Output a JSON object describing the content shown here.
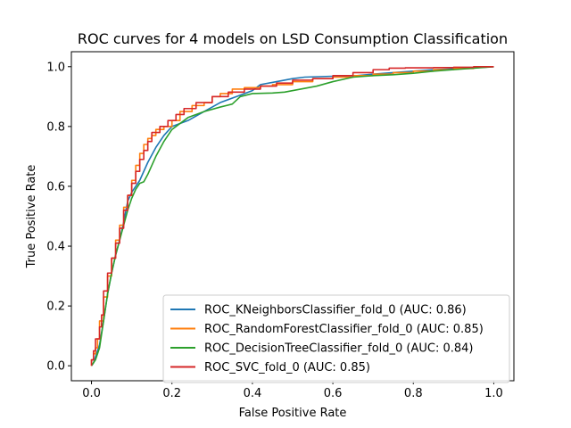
{
  "chart_data": {
    "type": "line",
    "title": "ROC curves for 4 models on LSD Consumption Classification",
    "xlabel": "False Positive Rate",
    "ylabel": "True Positive Rate",
    "xlim": [
      -0.05,
      1.05
    ],
    "ylim": [
      -0.05,
      1.05
    ],
    "xticks": [
      "0.0",
      "0.2",
      "0.4",
      "0.6",
      "0.8",
      "1.0"
    ],
    "yticks": [
      "0.0",
      "0.2",
      "0.4",
      "0.6",
      "0.8",
      "1.0"
    ],
    "grid": false,
    "legend_position": "bottom-right",
    "series": [
      {
        "name": "ROC_KNeighborsClassifier_fold_0 (AUC: 0.86)",
        "color": "#1f77b4",
        "step": false,
        "x": [
          0,
          0.005,
          0.01,
          0.02,
          0.03,
          0.04,
          0.05,
          0.06,
          0.07,
          0.08,
          0.09,
          0.1,
          0.12,
          0.14,
          0.16,
          0.18,
          0.2,
          0.24,
          0.28,
          0.32,
          0.36,
          0.4,
          0.42,
          0.46,
          0.5,
          0.53,
          0.6,
          0.66,
          0.7,
          0.75,
          0.8,
          0.85,
          0.9,
          0.95,
          1.0
        ],
        "y": [
          0,
          0.01,
          0.03,
          0.07,
          0.15,
          0.24,
          0.31,
          0.37,
          0.42,
          0.48,
          0.55,
          0.58,
          0.62,
          0.68,
          0.73,
          0.77,
          0.8,
          0.82,
          0.85,
          0.88,
          0.9,
          0.92,
          0.94,
          0.95,
          0.96,
          0.965,
          0.968,
          0.97,
          0.975,
          0.98,
          0.985,
          0.99,
          0.993,
          0.996,
          1.0
        ]
      },
      {
        "name": "ROC_RandomForestClassifier_fold_0 (AUC: 0.85)",
        "color": "#ff7f0e",
        "step": true,
        "x": [
          0,
          0.005,
          0.01,
          0.015,
          0.02,
          0.03,
          0.04,
          0.05,
          0.06,
          0.07,
          0.08,
          0.09,
          0.1,
          0.11,
          0.12,
          0.13,
          0.14,
          0.15,
          0.16,
          0.18,
          0.2,
          0.22,
          0.25,
          0.28,
          0.3,
          0.32,
          0.35,
          0.38,
          0.42,
          0.45,
          0.5,
          0.55,
          0.6,
          0.65,
          0.7,
          0.75,
          0.8,
          0.85,
          0.9,
          0.95,
          1.0
        ],
        "y": [
          0,
          0.02,
          0.04,
          0.06,
          0.09,
          0.15,
          0.23,
          0.3,
          0.36,
          0.42,
          0.47,
          0.53,
          0.57,
          0.62,
          0.67,
          0.71,
          0.74,
          0.76,
          0.77,
          0.79,
          0.8,
          0.82,
          0.85,
          0.87,
          0.88,
          0.9,
          0.91,
          0.925,
          0.93,
          0.935,
          0.94,
          0.95,
          0.96,
          0.965,
          0.97,
          0.975,
          0.98,
          0.985,
          0.99,
          0.994,
          1.0
        ]
      },
      {
        "name": "ROC_DecisionTreeClassifier_fold_0 (AUC: 0.84)",
        "color": "#2ca02c",
        "step": false,
        "x": [
          0,
          0.01,
          0.02,
          0.03,
          0.04,
          0.05,
          0.06,
          0.07,
          0.08,
          0.09,
          0.1,
          0.11,
          0.12,
          0.13,
          0.14,
          0.16,
          0.18,
          0.2,
          0.24,
          0.28,
          0.32,
          0.35,
          0.37,
          0.4,
          0.45,
          0.48,
          0.52,
          0.56,
          0.6,
          0.65,
          0.7,
          0.75,
          0.8,
          0.85,
          0.9,
          0.95,
          1.0
        ],
        "y": [
          0,
          0.02,
          0.06,
          0.15,
          0.24,
          0.31,
          0.37,
          0.42,
          0.47,
          0.52,
          0.56,
          0.59,
          0.61,
          0.615,
          0.64,
          0.7,
          0.75,
          0.79,
          0.83,
          0.85,
          0.865,
          0.875,
          0.9,
          0.91,
          0.912,
          0.915,
          0.925,
          0.935,
          0.95,
          0.965,
          0.97,
          0.973,
          0.978,
          0.985,
          0.99,
          0.995,
          1.0
        ]
      },
      {
        "name": "ROC_SVC_fold_0 (AUC: 0.85)",
        "color": "#d62728",
        "step": true,
        "x": [
          0,
          0.005,
          0.01,
          0.02,
          0.025,
          0.03,
          0.04,
          0.05,
          0.06,
          0.07,
          0.08,
          0.09,
          0.1,
          0.11,
          0.12,
          0.13,
          0.14,
          0.15,
          0.17,
          0.19,
          0.21,
          0.23,
          0.26,
          0.3,
          0.34,
          0.38,
          0.42,
          0.46,
          0.5,
          0.55,
          0.6,
          0.65,
          0.7,
          0.74,
          0.78,
          0.85,
          0.9,
          0.95,
          1.0
        ],
        "y": [
          0,
          0.02,
          0.05,
          0.09,
          0.13,
          0.17,
          0.25,
          0.31,
          0.36,
          0.41,
          0.46,
          0.52,
          0.57,
          0.61,
          0.65,
          0.69,
          0.72,
          0.75,
          0.78,
          0.8,
          0.82,
          0.84,
          0.86,
          0.88,
          0.9,
          0.915,
          0.925,
          0.935,
          0.945,
          0.955,
          0.96,
          0.97,
          0.98,
          0.99,
          0.995,
          0.996,
          0.997,
          0.998,
          1.0
        ]
      }
    ]
  }
}
